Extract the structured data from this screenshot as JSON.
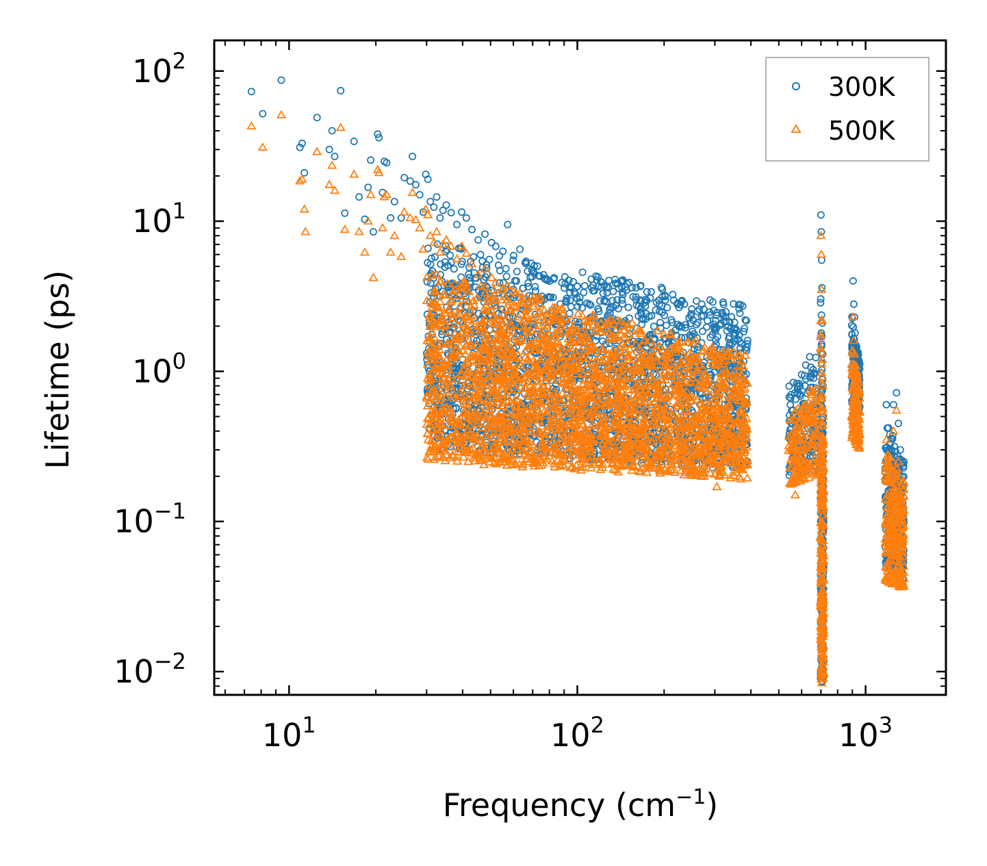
{
  "chart_data": {
    "type": "scatter",
    "title": "",
    "xlabel": "Frequency (cm",
    "xlabel_sup": "−1",
    "xlabel_tail": ")",
    "ylabel": "Lifetime (ps)",
    "xscale": "log",
    "yscale": "log",
    "xlim": [
      5.5,
      1900
    ],
    "ylim": [
      0.007,
      160
    ],
    "x_ticks": [
      {
        "value": 10,
        "base": "10",
        "exp": "1"
      },
      {
        "value": 100,
        "base": "10",
        "exp": "2"
      },
      {
        "value": 1000,
        "base": "10",
        "exp": "3"
      }
    ],
    "y_ticks": [
      {
        "value": 100,
        "base": "10",
        "exp": "2"
      },
      {
        "value": 10,
        "base": "10",
        "exp": "1"
      },
      {
        "value": 1,
        "base": "10",
        "exp": "0"
      },
      {
        "value": 0.1,
        "base": "10",
        "exp": "−1"
      },
      {
        "value": 0.01,
        "base": "10",
        "exp": "−2"
      }
    ],
    "legend_position": "top-right",
    "colors": {
      "300K": "#1f77b4",
      "500K": "#ff7f0e"
    },
    "series": [
      {
        "name": "300K",
        "marker": "circle",
        "color": "#1f77b4",
        "points": [
          [
            7.4,
            73
          ],
          [
            8.1,
            52
          ],
          [
            9.4,
            87
          ],
          [
            10.9,
            31
          ],
          [
            11.1,
            33
          ],
          [
            11.3,
            21
          ],
          [
            12.5,
            49
          ],
          [
            13.8,
            30
          ],
          [
            14.1,
            40
          ],
          [
            14.4,
            27
          ],
          [
            15.1,
            74
          ],
          [
            15.6,
            11.3
          ],
          [
            16.8,
            34
          ],
          [
            17.5,
            14.5
          ],
          [
            18.3,
            10.3
          ],
          [
            18.8,
            16.8
          ],
          [
            19.2,
            25.5
          ],
          [
            19.6,
            8.5
          ],
          [
            20.3,
            38
          ],
          [
            20.5,
            36
          ],
          [
            21.1,
            15.5
          ],
          [
            21.4,
            25
          ],
          [
            21.8,
            24.5
          ],
          [
            22.5,
            10.5
          ],
          [
            23.2,
            13.5
          ],
          [
            24.5,
            10.5
          ],
          [
            25.1,
            19.5
          ],
          [
            26.3,
            18.5
          ],
          [
            26.8,
            27
          ],
          [
            27.5,
            17.5
          ],
          [
            28.4,
            15
          ],
          [
            29.2,
            11.5
          ],
          [
            29.8,
            20.5
          ],
          [
            30.3,
            19
          ],
          [
            30.9,
            13.5
          ],
          [
            31.8,
            12.4
          ],
          [
            32.5,
            14.5
          ],
          [
            33.4,
            10.5
          ],
          [
            34.2,
            11.8
          ],
          [
            35.1,
            12.8
          ],
          [
            36.5,
            11.4
          ],
          [
            38.2,
            9.5
          ],
          [
            39.7,
            11.5
          ],
          [
            41.2,
            10.5
          ],
          [
            43.1,
            8.8
          ],
          [
            45.3,
            7.5
          ],
          [
            47.8,
            8.2
          ],
          [
            50.4,
            7.2
          ],
          [
            52.1,
            6.8
          ],
          [
            55.2,
            6.3
          ],
          [
            57.3,
            9.5
          ],
          [
            60.1,
            5.9
          ],
          [
            63.2,
            6.5
          ],
          [
            66.4,
            5.4
          ],
          [
            70.3,
            4.6
          ],
          [
            74.1,
            4.3
          ],
          [
            78.6,
            4.1
          ],
          [
            83.1,
            4.2
          ],
          [
            88.4,
            3.9
          ],
          [
            95.2,
            3.6
          ],
          [
            102,
            3.1
          ],
          [
            110,
            2.8
          ],
          [
            118,
            2.6
          ],
          [
            128,
            2.3
          ],
          [
            140,
            2.1
          ],
          [
            152,
            1.9
          ],
          [
            166,
            1.5
          ],
          [
            180,
            1.2
          ],
          [
            195,
            1.1
          ],
          [
            215,
            0.9
          ],
          [
            230,
            0.75
          ],
          [
            245,
            0.8
          ],
          [
            260,
            0.85
          ],
          [
            275,
            0.95
          ],
          [
            290,
            0.9
          ],
          [
            310,
            0.75
          ],
          [
            325,
            0.6
          ],
          [
            340,
            0.55
          ],
          [
            360,
            0.48
          ],
          [
            385,
            0.42
          ],
          [
            560,
            0.55
          ],
          [
            580,
            0.8
          ],
          [
            600,
            0.95
          ],
          [
            620,
            1.1
          ],
          [
            640,
            1.25
          ],
          [
            660,
            0.9
          ],
          [
            700,
            11
          ],
          [
            702,
            8.5
          ],
          [
            704,
            5.5
          ],
          [
            706,
            3.6
          ],
          [
            708,
            2.1
          ],
          [
            710,
            1.3
          ],
          [
            712,
            0.8
          ],
          [
            714,
            0.5
          ],
          [
            905,
            4.0
          ],
          [
            910,
            2.8
          ],
          [
            915,
            2.3
          ],
          [
            920,
            1.8
          ],
          [
            925,
            1.5
          ],
          [
            935,
            1.1
          ],
          [
            945,
            0.95
          ],
          [
            1180,
            0.6
          ],
          [
            1200,
            0.42
          ],
          [
            1230,
            0.3
          ],
          [
            1250,
            0.6
          ],
          [
            1280,
            0.72
          ],
          [
            1300,
            0.45
          ],
          [
            1320,
            0.3
          ],
          [
            1340,
            0.2
          ]
        ]
      },
      {
        "name": "500K",
        "marker": "triangle",
        "color": "#ff7f0e",
        "points": [
          [
            7.4,
            43
          ],
          [
            8.1,
            31
          ],
          [
            9.4,
            51
          ],
          [
            10.9,
            18.5
          ],
          [
            11.1,
            19
          ],
          [
            11.3,
            12
          ],
          [
            11.4,
            8.5
          ],
          [
            12.5,
            29
          ],
          [
            13.8,
            17.5
          ],
          [
            14.1,
            23.5
          ],
          [
            14.4,
            16
          ],
          [
            15.1,
            42
          ],
          [
            15.6,
            8.8
          ],
          [
            16.8,
            20.5
          ],
          [
            17.5,
            8.5
          ],
          [
            18.3,
            6.2
          ],
          [
            18.8,
            10
          ],
          [
            19.2,
            15
          ],
          [
            19.6,
            4.2
          ],
          [
            20.3,
            22
          ],
          [
            20.5,
            21
          ],
          [
            21.1,
            9
          ],
          [
            21.4,
            14.5
          ],
          [
            21.8,
            15
          ],
          [
            22.5,
            6.2
          ],
          [
            23.2,
            8
          ],
          [
            24.5,
            5.8
          ],
          [
            25.1,
            11.5
          ],
          [
            26.3,
            10.5
          ],
          [
            26.8,
            15.5
          ],
          [
            27.5,
            10.2
          ],
          [
            28.4,
            9
          ],
          [
            29.2,
            6.5
          ],
          [
            29.8,
            12
          ],
          [
            30.3,
            11
          ],
          [
            30.9,
            8
          ],
          [
            31.8,
            7.2
          ],
          [
            32.5,
            8.5
          ],
          [
            33.4,
            6.2
          ],
          [
            34.2,
            7
          ],
          [
            35.1,
            7.5
          ],
          [
            36.5,
            6.8
          ],
          [
            38.2,
            5.6
          ],
          [
            39.7,
            6.8
          ],
          [
            41.2,
            6.1
          ],
          [
            43.1,
            5.2
          ],
          [
            45.3,
            4.4
          ],
          [
            47.8,
            4.8
          ],
          [
            50.4,
            4.2
          ],
          [
            52.1,
            3.9
          ],
          [
            55.2,
            3.6
          ],
          [
            57.3,
            3.7
          ],
          [
            60.1,
            3.4
          ],
          [
            63.2,
            3.3
          ],
          [
            66.4,
            3.1
          ],
          [
            70.3,
            2.7
          ],
          [
            74.1,
            2.5
          ],
          [
            78.6,
            2.4
          ],
          [
            83.1,
            2.2
          ],
          [
            88.4,
            2.1
          ],
          [
            95.2,
            1.9
          ],
          [
            102,
            1.6
          ],
          [
            110,
            1.4
          ],
          [
            118,
            1.25
          ],
          [
            128,
            1.1
          ],
          [
            140,
            1.0
          ],
          [
            152,
            0.9
          ],
          [
            166,
            0.75
          ],
          [
            180,
            0.6
          ],
          [
            195,
            0.55
          ],
          [
            215,
            0.5
          ],
          [
            230,
            0.42
          ],
          [
            245,
            0.45
          ],
          [
            260,
            0.5
          ],
          [
            275,
            0.55
          ],
          [
            290,
            0.48
          ],
          [
            305,
            0.17
          ],
          [
            310,
            0.42
          ],
          [
            325,
            0.35
          ],
          [
            340,
            0.3
          ],
          [
            360,
            0.27
          ],
          [
            385,
            0.24
          ],
          [
            555,
            0.3
          ],
          [
            570,
            0.15
          ],
          [
            580,
            0.42
          ],
          [
            600,
            0.5
          ],
          [
            620,
            0.6
          ],
          [
            640,
            0.75
          ],
          [
            660,
            0.45
          ],
          [
            700,
            8
          ],
          [
            702,
            6
          ],
          [
            704,
            3.5
          ],
          [
            706,
            2.2
          ],
          [
            708,
            1.2
          ],
          [
            710,
            0.8
          ],
          [
            712,
            0.5
          ],
          [
            714,
            0.3
          ],
          [
            905,
            2.3
          ],
          [
            910,
            1.6
          ],
          [
            915,
            1.3
          ],
          [
            920,
            1.0
          ],
          [
            925,
            0.8
          ],
          [
            935,
            0.6
          ],
          [
            945,
            0.5
          ],
          [
            1180,
            0.35
          ],
          [
            1200,
            0.25
          ],
          [
            1230,
            0.18
          ],
          [
            1250,
            0.4
          ],
          [
            1280,
            0.55
          ],
          [
            1300,
            0.25
          ],
          [
            1320,
            0.15
          ],
          [
            1340,
            0.11
          ]
        ]
      }
    ],
    "dense_regions": [
      {
        "series": "300K",
        "x_range": [
          30,
          390
        ],
        "y_start": [
          7.5,
          0.3
        ],
        "y_end": [
          2.8,
          0.22
        ],
        "count": 2200
      },
      {
        "series": "300K",
        "x_range": [
          540,
          680
        ],
        "y_start": [
          0.8,
          0.18
        ],
        "y_end": [
          1.3,
          0.22
        ],
        "count": 160
      },
      {
        "series": "300K",
        "x_range": [
          698,
          716
        ],
        "y_start": [
          5.0,
          0.009
        ],
        "y_end": [
          0.4,
          0.008
        ],
        "count": 200
      },
      {
        "series": "300K",
        "x_range": [
          895,
          955
        ],
        "y_start": [
          2.4,
          0.6
        ],
        "y_end": [
          1.2,
          0.5
        ],
        "count": 150
      },
      {
        "series": "300K",
        "x_range": [
          1170,
          1360
        ],
        "y_start": [
          0.45,
          0.05
        ],
        "y_end": [
          0.3,
          0.04
        ],
        "count": 260
      },
      {
        "series": "500K",
        "x_range": [
          30,
          390
        ],
        "y_start": [
          5.0,
          0.25
        ],
        "y_end": [
          1.3,
          0.19
        ],
        "count": 2400
      },
      {
        "series": "500K",
        "x_range": [
          540,
          680
        ],
        "y_start": [
          0.5,
          0.17
        ],
        "y_end": [
          0.8,
          0.2
        ],
        "count": 160
      },
      {
        "series": "500K",
        "x_range": [
          698,
          716
        ],
        "y_start": [
          3.0,
          0.008
        ],
        "y_end": [
          0.3,
          0.008
        ],
        "count": 220
      },
      {
        "series": "500K",
        "x_range": [
          895,
          955
        ],
        "y_start": [
          1.6,
          0.35
        ],
        "y_end": [
          0.8,
          0.3
        ],
        "count": 150
      },
      {
        "series": "500K",
        "x_range": [
          1170,
          1360
        ],
        "y_start": [
          0.3,
          0.04
        ],
        "y_end": [
          0.2,
          0.035
        ],
        "count": 260
      }
    ]
  }
}
